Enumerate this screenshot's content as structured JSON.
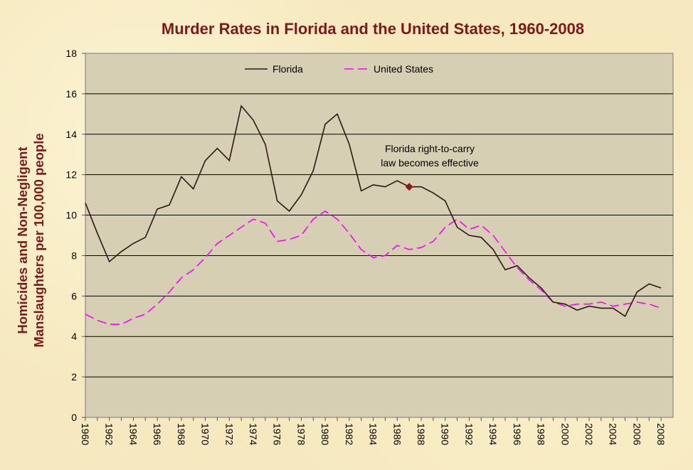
{
  "chart_data": {
    "type": "line",
    "title": "Murder Rates in Florida and the United States, 1960-2008",
    "ylabel_line1": "Homicides and Non-Negligent",
    "ylabel_line2": "Manslaughters per 100,000 people",
    "xlabel": "",
    "ylim": [
      0,
      18
    ],
    "yticks": [
      0,
      2,
      4,
      6,
      8,
      10,
      12,
      14,
      16,
      18
    ],
    "xlim": [
      1960,
      2009
    ],
    "xticks": [
      1960,
      1962,
      1964,
      1966,
      1968,
      1970,
      1972,
      1974,
      1976,
      1978,
      1980,
      1982,
      1984,
      1986,
      1988,
      1990,
      1992,
      1994,
      1996,
      1998,
      2000,
      2002,
      2004,
      2006,
      2008
    ],
    "grid": true,
    "legend_position": "top",
    "x": [
      1960,
      1961,
      1962,
      1963,
      1964,
      1965,
      1966,
      1967,
      1968,
      1969,
      1970,
      1971,
      1972,
      1973,
      1974,
      1975,
      1976,
      1977,
      1978,
      1979,
      1980,
      1981,
      1982,
      1983,
      1984,
      1985,
      1986,
      1987,
      1988,
      1989,
      1990,
      1991,
      1992,
      1993,
      1994,
      1995,
      1996,
      1997,
      1998,
      1999,
      2000,
      2001,
      2002,
      2003,
      2004,
      2005,
      2006,
      2007,
      2008
    ],
    "series": [
      {
        "name": "Florida",
        "color": "#2d1616",
        "style": "solid",
        "values": [
          10.6,
          9.1,
          7.7,
          8.2,
          8.6,
          8.9,
          10.3,
          10.5,
          11.9,
          11.3,
          12.7,
          13.3,
          12.7,
          15.4,
          14.7,
          13.5,
          10.7,
          10.2,
          11.0,
          12.2,
          14.5,
          15.0,
          13.5,
          11.2,
          11.5,
          11.4,
          11.7,
          11.4,
          11.4,
          11.1,
          10.7,
          9.4,
          9.0,
          8.9,
          8.3,
          7.3,
          7.5,
          6.9,
          6.4,
          5.7,
          5.6,
          5.3,
          5.5,
          5.4,
          5.4,
          5.0,
          6.2,
          6.6,
          6.4
        ]
      },
      {
        "name": "United States",
        "color": "#ff00ff",
        "style": "dashed",
        "values": [
          5.1,
          4.8,
          4.6,
          4.6,
          4.9,
          5.1,
          5.6,
          6.2,
          6.9,
          7.3,
          7.9,
          8.6,
          9.0,
          9.4,
          9.8,
          9.6,
          8.7,
          8.8,
          9.0,
          9.8,
          10.2,
          9.8,
          9.1,
          8.3,
          7.9,
          8.0,
          8.5,
          8.3,
          8.4,
          8.7,
          9.4,
          9.8,
          9.3,
          9.5,
          9.0,
          8.2,
          7.4,
          6.8,
          6.3,
          5.7,
          5.5,
          5.6,
          5.6,
          5.7,
          5.5,
          5.6,
          5.7,
          5.6,
          5.4
        ]
      }
    ],
    "annotation": {
      "year": 1987,
      "value": 11.4,
      "color": "#8b1a1a",
      "line1": "Florida right-to-carry",
      "line2": "law becomes effective"
    }
  }
}
